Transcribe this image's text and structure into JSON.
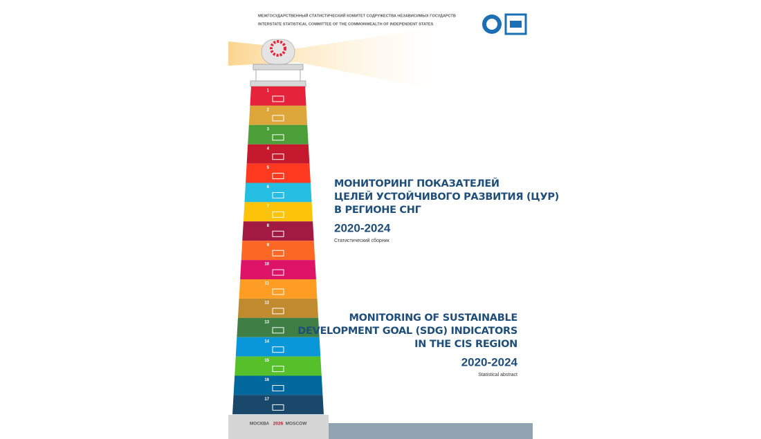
{
  "header": {
    "line_ru": "МЕЖГОСУДАРСТВЕННЫЙ СТАТИСТИЧЕСКИЙ КОМИТЕТ СОДРУЖЕСТВА НЕЗАВИСИМЫХ ГОСУДАРСТВ",
    "line_en": "INTERSTATE STATISTICAL COMMITTEE OF THE COMMONWEALTH OF INDEPENDENT STATES"
  },
  "title_ru": {
    "lines": [
      "МОНИТОРИНГ ПОКАЗАТЕЛЕЙ",
      "ЦЕЛЕЙ УСТОЙЧИВОГО РАЗВИТИЯ (ЦУР)",
      "В РЕГИОНЕ СНГ"
    ],
    "years": "2020-2024",
    "subtitle": "Статистический сборник"
  },
  "title_en": {
    "lines": [
      "MONITORING OF SUSTAINABLE",
      "DEVELOPMENT GOAL (SDG) INDICATORS",
      "IN THE CIS REGION"
    ],
    "years": "2020-2024",
    "subtitle": "Statistical abstract"
  },
  "goals": [
    {
      "number": "1",
      "color": "#e5243b"
    },
    {
      "number": "2",
      "color": "#dda63a"
    },
    {
      "number": "3",
      "color": "#4c9f38"
    },
    {
      "number": "4",
      "color": "#c5192d"
    },
    {
      "number": "5",
      "color": "#ff3a21"
    },
    {
      "number": "6",
      "color": "#26bde2"
    },
    {
      "number": "7",
      "color": "#fcc30b"
    },
    {
      "number": "8",
      "color": "#a21942"
    },
    {
      "number": "9",
      "color": "#fd6925"
    },
    {
      "number": "10",
      "color": "#dd1367"
    },
    {
      "number": "11",
      "color": "#fd9d24"
    },
    {
      "number": "12",
      "color": "#bf8b2e"
    },
    {
      "number": "13",
      "color": "#3f7e44"
    },
    {
      "number": "14",
      "color": "#0a97d9"
    },
    {
      "number": "15",
      "color": "#56c02b"
    },
    {
      "number": "16",
      "color": "#00689d"
    },
    {
      "number": "17",
      "color": "#19486a"
    }
  ],
  "footer": {
    "city_ru": "МОСКВА",
    "year": "2026",
    "city_en": "MOSCOW"
  }
}
